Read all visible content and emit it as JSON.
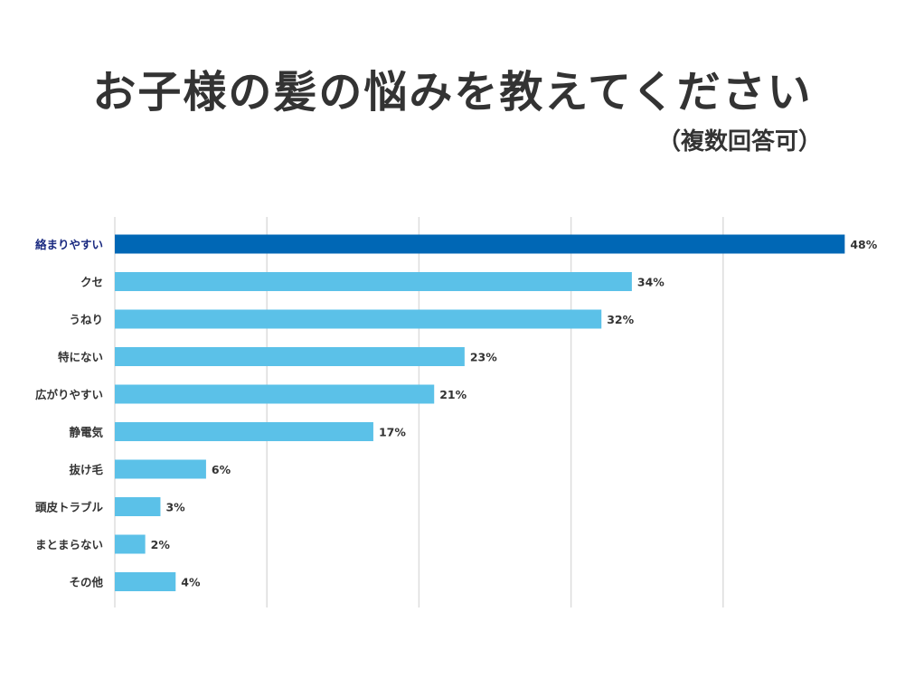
{
  "title": "お子様の髪の悩みを教えてください",
  "subtitle": "（複数回答可）",
  "colors": {
    "highlight": "#0067b5",
    "bar": "#5bc1e8",
    "highlight_label": "#1a2a80",
    "label": "#333333",
    "grid": "#dddddd"
  },
  "chart_data": {
    "type": "bar",
    "orientation": "horizontal",
    "title": "お子様の髪の悩みを教えてください",
    "subtitle": "（複数回答可）",
    "xlabel": "",
    "ylabel": "",
    "xlim": [
      0,
      50
    ],
    "grid": true,
    "unit": "%",
    "highlight_index": 0,
    "categories": [
      "絡まりやすい",
      "クセ",
      "うねり",
      "特にない",
      "広がりやすい",
      "静電気",
      "抜け毛",
      "頭皮トラブル",
      "まとまらない",
      "その他"
    ],
    "values": [
      48,
      34,
      32,
      23,
      21,
      17,
      6,
      3,
      2,
      4
    ],
    "value_labels": [
      "48%",
      "34%",
      "32%",
      "23%",
      "21%",
      "17%",
      "6%",
      "3%",
      "2%",
      "4%"
    ]
  }
}
